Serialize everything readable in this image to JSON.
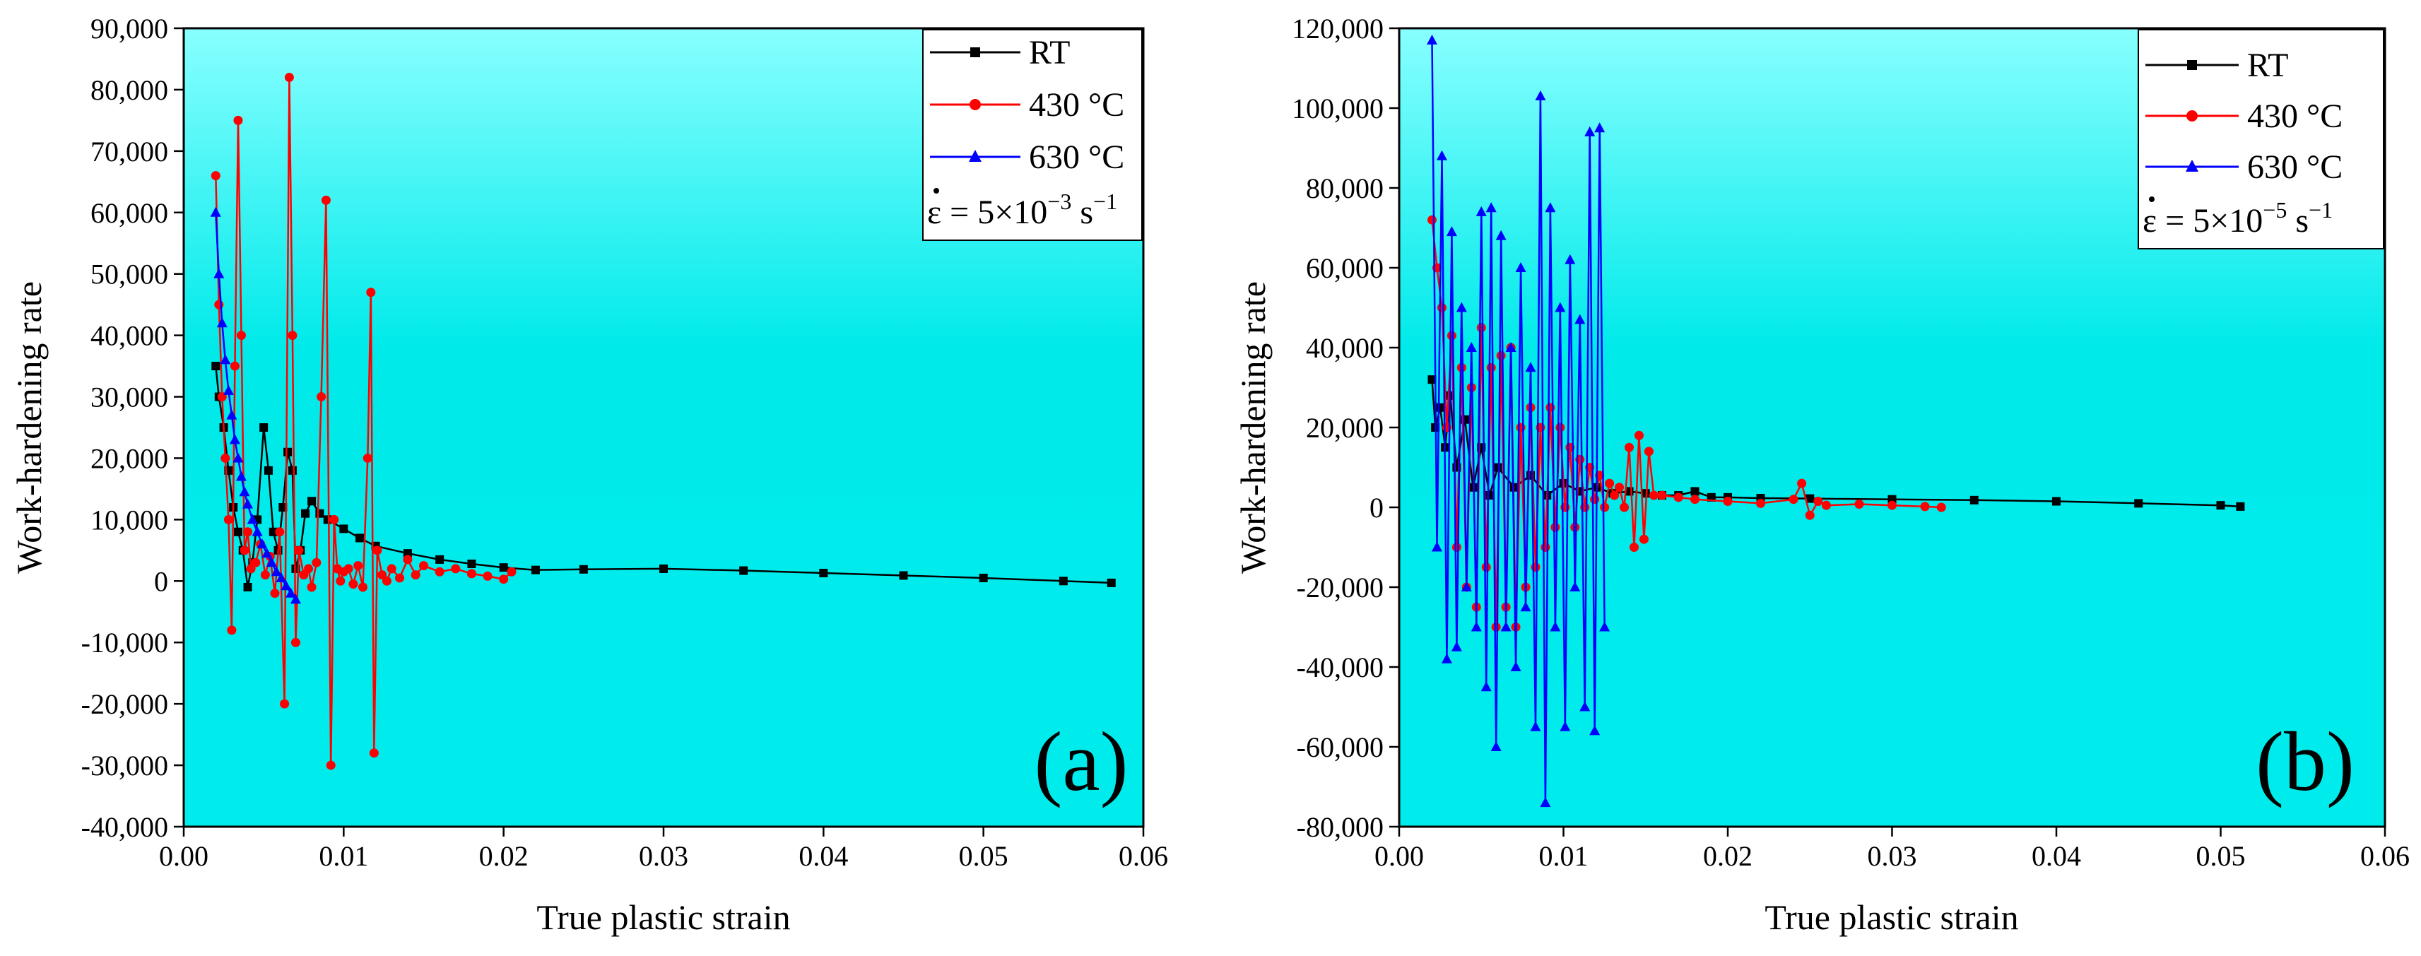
{
  "figure": {
    "background": "#ffffff",
    "plot_gradient": {
      "top": "#88ffff",
      "mid": "#00eaea",
      "bottom": "#00ecec"
    }
  },
  "chart_data": [
    {
      "id": "a",
      "type": "line",
      "panel_label": "(a)",
      "xlabel": "True plastic strain",
      "ylabel": "Work-hardening rate",
      "xlim": [
        0,
        0.06
      ],
      "ylim": [
        -40000,
        90000
      ],
      "xticks": [
        0,
        0.01,
        0.02,
        0.03,
        0.04,
        0.05,
        0.06
      ],
      "xtick_labels": [
        "0.00",
        "0.01",
        "0.02",
        "0.03",
        "0.04",
        "0.05",
        "0.06"
      ],
      "yticks": [
        -40000,
        -30000,
        -20000,
        -10000,
        0,
        10000,
        20000,
        30000,
        40000,
        50000,
        60000,
        70000,
        80000,
        90000
      ],
      "ytick_labels": [
        "-40,000",
        "-30,000",
        "-20,000",
        "-10,000",
        "0",
        "10,000",
        "20,000",
        "30,000",
        "40,000",
        "50,000",
        "60,000",
        "70,000",
        "80,000",
        "90,000"
      ],
      "grid": false,
      "legend": {
        "position": "top-right",
        "items": [
          "RT",
          "430 °C",
          "630 °C"
        ],
        "rate": {
          "prefix": "ε = 5×10",
          "exponent": "−3",
          "unit": " s",
          "unit_exp": "−1"
        }
      },
      "series": [
        {
          "name": "RT",
          "color": "#000000",
          "marker": "square",
          "x": [
            0.002,
            0.0022,
            0.0025,
            0.0028,
            0.0031,
            0.0034,
            0.0037,
            0.004,
            0.0043,
            0.0046,
            0.005,
            0.0053,
            0.0056,
            0.0059,
            0.0062,
            0.0065,
            0.0068,
            0.007,
            0.0073,
            0.0076,
            0.008,
            0.0085,
            0.009,
            0.01,
            0.011,
            0.012,
            0.014,
            0.016,
            0.018,
            0.02,
            0.022,
            0.025,
            0.03,
            0.035,
            0.04,
            0.045,
            0.05,
            0.055,
            0.058
          ],
          "y": [
            35000,
            30000,
            25000,
            18000,
            12000,
            8000,
            5000,
            -1000,
            3000,
            10000,
            25000,
            18000,
            8000,
            5000,
            12000,
            21000,
            18000,
            2000,
            5000,
            11000,
            13000,
            11000,
            10000,
            8500,
            7000,
            5700,
            4500,
            3500,
            2800,
            2200,
            1800,
            1900,
            2000,
            1700,
            1300,
            900,
            500,
            0,
            -300
          ]
        },
        {
          "name": "430 °C",
          "color": "#ff0000",
          "marker": "circle",
          "x": [
            0.002,
            0.0022,
            0.0024,
            0.0026,
            0.0028,
            0.003,
            0.0032,
            0.0034,
            0.0036,
            0.0038,
            0.004,
            0.0042,
            0.0045,
            0.0048,
            0.0051,
            0.0054,
            0.0057,
            0.006,
            0.0063,
            0.0066,
            0.0068,
            0.007,
            0.0072,
            0.0075,
            0.0078,
            0.008,
            0.0083,
            0.0086,
            0.0089,
            0.0092,
            0.0094,
            0.0096,
            0.0098,
            0.01,
            0.0103,
            0.0106,
            0.0109,
            0.0112,
            0.0115,
            0.0117,
            0.0119,
            0.0121,
            0.0124,
            0.0127,
            0.013,
            0.0135,
            0.014,
            0.0145,
            0.015,
            0.016,
            0.017,
            0.018,
            0.019,
            0.02,
            0.0205
          ],
          "y": [
            66000,
            45000,
            30000,
            20000,
            10000,
            -8000,
            35000,
            75000,
            40000,
            5000,
            8000,
            2000,
            3000,
            6000,
            1000,
            4000,
            -2000,
            8000,
            -20000,
            82000,
            40000,
            -10000,
            5000,
            1000,
            2000,
            -1000,
            3000,
            30000,
            62000,
            -30000,
            10000,
            2000,
            0,
            1500,
            2000,
            -500,
            2500,
            -1000,
            20000,
            47000,
            -28000,
            5000,
            1000,
            0,
            2000,
            500,
            3500,
            1000,
            2500,
            1500,
            2000,
            1200,
            800,
            300,
            1500
          ]
        },
        {
          "name": "630 °C",
          "color": "#0000ff",
          "marker": "triangle",
          "x": [
            0.002,
            0.0022,
            0.0024,
            0.0026,
            0.0028,
            0.003,
            0.0032,
            0.0034,
            0.0036,
            0.0038,
            0.004,
            0.0043,
            0.0046,
            0.0049,
            0.0052,
            0.0055,
            0.0058,
            0.0061,
            0.0064,
            0.0067,
            0.007
          ],
          "y": [
            60000,
            50000,
            42000,
            36000,
            31000,
            27000,
            23000,
            20000,
            17000,
            14500,
            12500,
            10000,
            8000,
            6000,
            4500,
            3000,
            1500,
            500,
            -800,
            -2000,
            -3000
          ]
        }
      ]
    },
    {
      "id": "b",
      "type": "line",
      "panel_label": "(b)",
      "xlabel": "True plastic strain",
      "ylabel": "Work-hardening rate",
      "xlim": [
        0,
        0.06
      ],
      "ylim": [
        -80000,
        120000
      ],
      "xticks": [
        0,
        0.01,
        0.02,
        0.03,
        0.04,
        0.05,
        0.06
      ],
      "xtick_labels": [
        "0.00",
        "0.01",
        "0.02",
        "0.03",
        "0.04",
        "0.05",
        "0.06"
      ],
      "yticks": [
        -80000,
        -60000,
        -40000,
        -20000,
        0,
        20000,
        40000,
        60000,
        80000,
        100000,
        120000
      ],
      "ytick_labels": [
        "-80,000",
        "-60,000",
        "-40,000",
        "-20,000",
        "0",
        "20,000",
        "40,000",
        "60,000",
        "80,000",
        "100,000",
        "120,000"
      ],
      "grid": false,
      "legend": {
        "position": "top-right",
        "items": [
          "RT",
          "430 °C",
          "630 °C"
        ],
        "rate": {
          "prefix": "ε = 5×10",
          "exponent": "−5",
          "unit": " s",
          "unit_exp": "−1"
        }
      },
      "series": [
        {
          "name": "RT",
          "color": "#000000",
          "marker": "square",
          "x": [
            0.002,
            0.0022,
            0.0025,
            0.0028,
            0.0031,
            0.0035,
            0.004,
            0.0045,
            0.005,
            0.0055,
            0.006,
            0.007,
            0.008,
            0.009,
            0.01,
            0.011,
            0.012,
            0.013,
            0.014,
            0.015,
            0.016,
            0.017,
            0.018,
            0.019,
            0.02,
            0.022,
            0.025,
            0.03,
            0.035,
            0.04,
            0.045,
            0.05,
            0.0512
          ],
          "y": [
            32000,
            20000,
            25000,
            15000,
            28000,
            10000,
            22000,
            5000,
            15000,
            3000,
            10000,
            5000,
            8000,
            3000,
            6000,
            4000,
            5000,
            3500,
            4000,
            3500,
            3000,
            3000,
            4000,
            2500,
            2500,
            2300,
            2200,
            2000,
            1800,
            1500,
            1000,
            500,
            200
          ]
        },
        {
          "name": "430 °C",
          "color": "#ff0000",
          "marker": "circle",
          "x": [
            0.002,
            0.0023,
            0.0026,
            0.0029,
            0.0032,
            0.0035,
            0.0038,
            0.0041,
            0.0044,
            0.0047,
            0.005,
            0.0053,
            0.0056,
            0.0059,
            0.0062,
            0.0065,
            0.0068,
            0.0071,
            0.0074,
            0.0077,
            0.008,
            0.0083,
            0.0086,
            0.0089,
            0.0092,
            0.0095,
            0.0098,
            0.0101,
            0.0104,
            0.0107,
            0.011,
            0.0113,
            0.0116,
            0.0119,
            0.0122,
            0.0125,
            0.0128,
            0.0131,
            0.0134,
            0.0137,
            0.014,
            0.0143,
            0.0146,
            0.0149,
            0.0152,
            0.0155,
            0.016,
            0.017,
            0.018,
            0.02,
            0.022,
            0.024,
            0.0245,
            0.025,
            0.0255,
            0.026,
            0.028,
            0.03,
            0.032,
            0.033
          ],
          "y": [
            72000,
            60000,
            50000,
            20000,
            43000,
            -10000,
            35000,
            -20000,
            30000,
            -25000,
            45000,
            -15000,
            35000,
            -30000,
            38000,
            -25000,
            40000,
            -30000,
            20000,
            -20000,
            25000,
            -15000,
            20000,
            -10000,
            25000,
            -5000,
            20000,
            0,
            15000,
            -5000,
            12000,
            0,
            10000,
            2000,
            8000,
            0,
            6000,
            3000,
            5000,
            0,
            15000,
            -10000,
            18000,
            -8000,
            14000,
            3000,
            3000,
            2500,
            2000,
            1500,
            1000,
            2000,
            6000,
            -2000,
            1500,
            500,
            800,
            500,
            200,
            0
          ]
        },
        {
          "name": "630 °C",
          "color": "#0000ff",
          "marker": "triangle",
          "x": [
            0.002,
            0.0023,
            0.0026,
            0.0029,
            0.0032,
            0.0035,
            0.0038,
            0.0041,
            0.0044,
            0.0047,
            0.005,
            0.0053,
            0.0056,
            0.0059,
            0.0062,
            0.0065,
            0.0068,
            0.0071,
            0.0074,
            0.0077,
            0.008,
            0.0083,
            0.0086,
            0.0089,
            0.0092,
            0.0095,
            0.0098,
            0.0101,
            0.0104,
            0.0107,
            0.011,
            0.0113,
            0.0116,
            0.0119,
            0.0122,
            0.0125
          ],
          "y": [
            117000,
            -10000,
            88000,
            -38000,
            69000,
            -35000,
            50000,
            -20000,
            40000,
            -30000,
            74000,
            -45000,
            75000,
            -60000,
            68000,
            -30000,
            40000,
            -40000,
            60000,
            -25000,
            35000,
            -55000,
            103000,
            -74000,
            75000,
            -30000,
            50000,
            -55000,
            62000,
            -20000,
            47000,
            -50000,
            94000,
            -56000,
            95000,
            -30000
          ]
        }
      ]
    }
  ]
}
